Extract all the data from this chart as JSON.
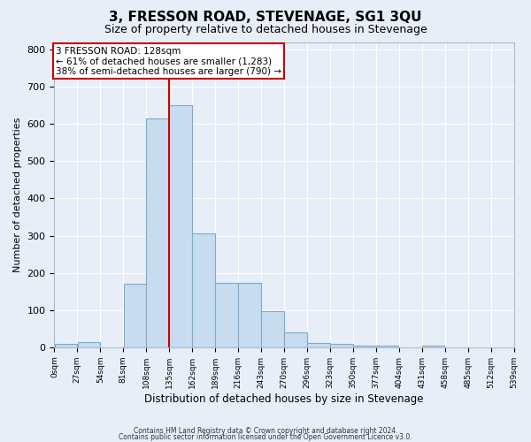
{
  "title": "3, FRESSON ROAD, STEVENAGE, SG1 3QU",
  "subtitle": "Size of property relative to detached houses in Stevenage",
  "xlabel": "Distribution of detached houses by size in Stevenage",
  "ylabel": "Number of detached properties",
  "bin_edges": [
    0,
    27,
    54,
    81,
    108,
    135,
    162,
    189,
    216,
    243,
    270,
    297,
    324,
    351,
    378,
    405,
    432,
    459,
    486,
    513,
    540
  ],
  "bar_heights": [
    8,
    14,
    0,
    170,
    615,
    650,
    305,
    173,
    172,
    97,
    40,
    12,
    8,
    5,
    5,
    0,
    5,
    0,
    0,
    0
  ],
  "bar_color": "#c8dcf0",
  "bar_edgecolor": "#7aaacc",
  "property_line_x": 135,
  "property_line_color": "#cc0000",
  "annotation_line1": "3 FRESSON ROAD: 128sqm",
  "annotation_line2": "← 61% of detached houses are smaller (1,283)",
  "annotation_line3": "38% of semi-detached houses are larger (790) →",
  "annotation_box_edgecolor": "#cc0000",
  "annotation_box_facecolor": "#ffffff",
  "ylim": [
    0,
    820
  ],
  "xlim": [
    0,
    540
  ],
  "fig_facecolor": "#e8eef8",
  "plot_facecolor": "#e8eef8",
  "footer_line1": "Contains HM Land Registry data © Crown copyright and database right 2024.",
  "footer_line2": "Contains public sector information licensed under the Open Government Licence v3.0.",
  "title_fontsize": 11,
  "subtitle_fontsize": 9,
  "tick_labels": [
    "0sqm",
    "27sqm",
    "54sqm",
    "81sqm",
    "108sqm",
    "135sqm",
    "162sqm",
    "189sqm",
    "216sqm",
    "243sqm",
    "270sqm",
    "296sqm",
    "323sqm",
    "350sqm",
    "377sqm",
    "404sqm",
    "431sqm",
    "458sqm",
    "485sqm",
    "512sqm",
    "539sqm"
  ],
  "yticks": [
    0,
    100,
    200,
    300,
    400,
    500,
    600,
    700,
    800
  ],
  "grid_color": "#ffffff",
  "spine_color": "#b0b8c8"
}
